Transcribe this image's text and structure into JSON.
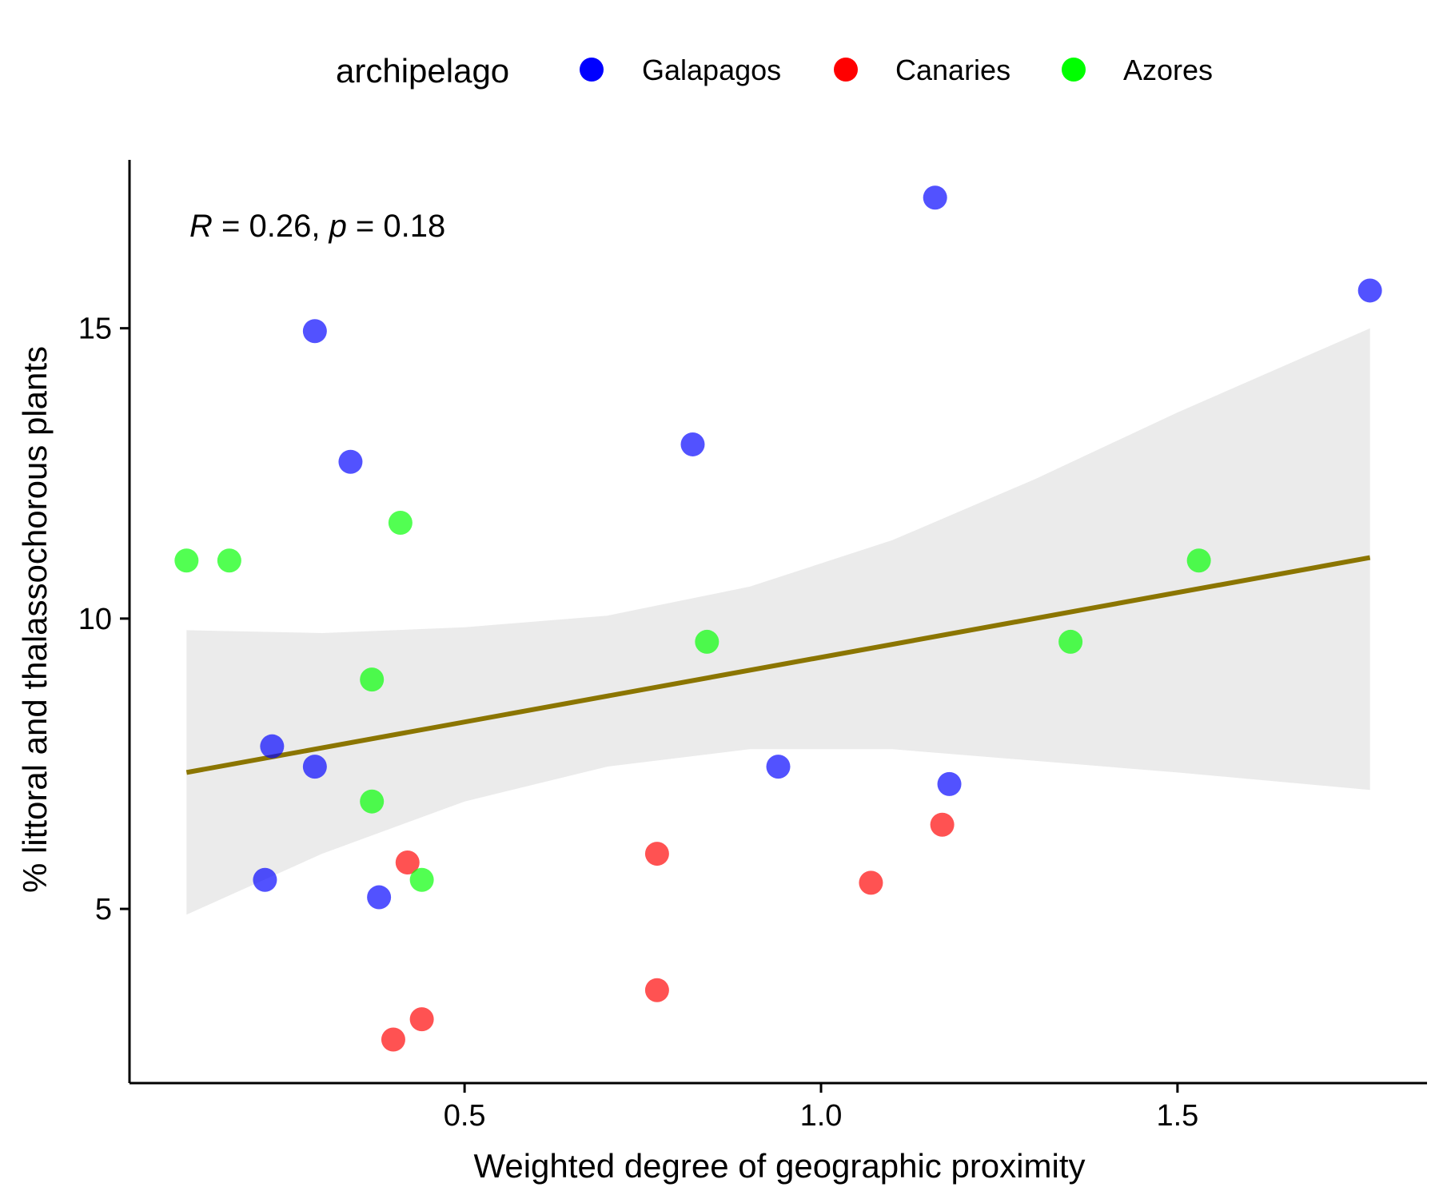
{
  "chart_data": {
    "type": "scatter",
    "xlabel": "Weighted degree of geographic proximity",
    "ylabel": "% littoral and thalassochorous plants",
    "xlim": [
      0.03,
      1.85
    ],
    "ylim": [
      2.0,
      17.9
    ],
    "x_ticks": [
      0.5,
      1.0,
      1.5
    ],
    "x_tick_labels": [
      "0.5",
      "1.0",
      "1.5"
    ],
    "y_ticks": [
      5,
      10,
      15
    ],
    "y_tick_labels": [
      "5",
      "10",
      "15"
    ],
    "grid": false,
    "legend": {
      "title": "archipelago",
      "placement": "top",
      "entries": [
        {
          "label": "Galapagos",
          "color": "#0000ff"
        },
        {
          "label": "Canaries",
          "color": "#ff0000"
        },
        {
          "label": "Azores",
          "color": "#00ff00"
        }
      ]
    },
    "annotation": {
      "r_label": "R",
      "r_text": " = 0.26, ",
      "p_label": "p",
      "p_text": " = 0.18"
    },
    "series": [
      {
        "name": "Galapagos",
        "color": "#0000ff",
        "points": [
          {
            "x": 0.29,
            "y": 14.95
          },
          {
            "x": 0.34,
            "y": 12.7
          },
          {
            "x": 0.82,
            "y": 13.0
          },
          {
            "x": 1.16,
            "y": 17.25
          },
          {
            "x": 1.77,
            "y": 15.65
          },
          {
            "x": 0.23,
            "y": 7.8
          },
          {
            "x": 0.29,
            "y": 7.45
          },
          {
            "x": 0.94,
            "y": 7.45
          },
          {
            "x": 1.18,
            "y": 7.15
          },
          {
            "x": 0.22,
            "y": 5.5
          },
          {
            "x": 0.38,
            "y": 5.2
          }
        ]
      },
      {
        "name": "Canaries",
        "color": "#ff0000",
        "points": [
          {
            "x": 0.42,
            "y": 5.8
          },
          {
            "x": 0.77,
            "y": 5.95
          },
          {
            "x": 1.07,
            "y": 5.45
          },
          {
            "x": 1.17,
            "y": 6.45
          },
          {
            "x": 0.77,
            "y": 3.6
          },
          {
            "x": 0.44,
            "y": 3.1
          },
          {
            "x": 0.4,
            "y": 2.75
          }
        ]
      },
      {
        "name": "Azores",
        "color": "#00ff00",
        "points": [
          {
            "x": 0.11,
            "y": 11.0
          },
          {
            "x": 0.17,
            "y": 11.0
          },
          {
            "x": 0.41,
            "y": 11.65
          },
          {
            "x": 0.37,
            "y": 8.95
          },
          {
            "x": 0.84,
            "y": 9.6
          },
          {
            "x": 1.35,
            "y": 9.6
          },
          {
            "x": 1.53,
            "y": 11.0
          },
          {
            "x": 0.37,
            "y": 6.85
          },
          {
            "x": 0.44,
            "y": 5.5
          }
        ]
      }
    ],
    "regression": {
      "color": "#8b7500",
      "x": [
        0.11,
        1.77
      ],
      "y": [
        7.35,
        11.05
      ],
      "ci_color": "#ebebeb",
      "ci": [
        {
          "x": 0.11,
          "lo": 4.9,
          "hi": 9.8
        },
        {
          "x": 0.3,
          "lo": 5.95,
          "hi": 9.75
        },
        {
          "x": 0.5,
          "lo": 6.85,
          "hi": 9.85
        },
        {
          "x": 0.7,
          "lo": 7.45,
          "hi": 10.05
        },
        {
          "x": 0.9,
          "lo": 7.75,
          "hi": 10.55
        },
        {
          "x": 1.1,
          "lo": 7.75,
          "hi": 11.35
        },
        {
          "x": 1.3,
          "lo": 7.55,
          "hi": 12.4
        },
        {
          "x": 1.5,
          "lo": 7.35,
          "hi": 13.55
        },
        {
          "x": 1.77,
          "lo": 7.05,
          "hi": 15.0
        }
      ]
    }
  }
}
